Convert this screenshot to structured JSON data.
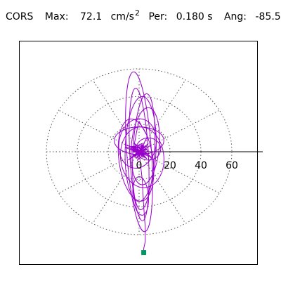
{
  "header": {
    "station": "CORS",
    "max_label": "Max:",
    "max_value": "72.1",
    "max_unit": "cm/s",
    "max_unit_exp": "2",
    "period_label": "Per:",
    "period_value": "0.180 s",
    "angle_label": "Ang:",
    "angle_value": "-85.5"
  },
  "chart_data": {
    "type": "polar-orbit",
    "title": "",
    "radial_ticks": [
      20,
      40,
      60
    ],
    "radial_tick_labels": [
      "0",
      "20",
      "40",
      "60"
    ],
    "radial_range": [
      0,
      80
    ],
    "grid": true,
    "angular_gridlines_deg": [
      0,
      30,
      60,
      90,
      120,
      150,
      180,
      210,
      240,
      270,
      300,
      330
    ],
    "max_amplitude": 72.1,
    "max_angle_deg": -85.5,
    "colors": {
      "trace": "#9900cc",
      "grid": "#555555",
      "axis": "#000000",
      "marker": "#009966"
    },
    "trace": {
      "x": [
        0,
        1,
        -2,
        3,
        -4,
        4,
        -3,
        5,
        -6,
        2,
        -1,
        6,
        -5,
        7,
        -8,
        4,
        -3,
        8,
        -9,
        3,
        -2,
        5,
        -1,
        0,
        2,
        -3,
        6,
        -7,
        8,
        -6,
        5,
        -4,
        3,
        -2,
        1,
        0,
        3,
        -4,
        6,
        -5,
        2,
        -1,
        0,
        2,
        -2,
        4,
        -5,
        3,
        -3,
        1,
        0,
        -1,
        2,
        0,
        0,
        1,
        2,
        3,
        4,
        5,
        5,
        4,
        3,
        2,
        1,
        0,
        -1,
        -2,
        -3,
        -2,
        -1,
        0
      ],
      "y": [
        0,
        2,
        -3,
        4,
        3,
        -4,
        5,
        -5,
        2,
        6,
        -6,
        1,
        4,
        -3,
        5,
        -2,
        6,
        -4,
        3,
        5,
        -5,
        2,
        -1,
        0,
        4,
        -4,
        6,
        -6,
        5,
        -5,
        4,
        -3,
        3,
        -2,
        2,
        -1,
        1,
        0,
        -2,
        3,
        -3,
        2,
        -2,
        1,
        -1,
        0,
        2,
        -2,
        3,
        -1,
        0,
        1,
        -1,
        0,
        0,
        2,
        4,
        6,
        8,
        10,
        12,
        14,
        16,
        18,
        20,
        22,
        18,
        12,
        6,
        2,
        0,
        0
      ]
    },
    "lobes": [
      {
        "cx": 0,
        "cy": 0,
        "rx": 8,
        "ry": 58,
        "rot": -4
      },
      {
        "cx": 0,
        "cy": -2,
        "rx": 6,
        "ry": 48,
        "rot": -3
      },
      {
        "cx": 1,
        "cy": 2,
        "rx": 10,
        "ry": 38,
        "rot": 2
      },
      {
        "cx": 2,
        "cy": -4,
        "rx": 14,
        "ry": 22,
        "rot": -6
      },
      {
        "cx": -1,
        "cy": 6,
        "rx": 12,
        "ry": 18,
        "rot": 10
      },
      {
        "cx": 1,
        "cy": -32,
        "rx": 5,
        "ry": 14,
        "rot": -5
      },
      {
        "cx": 4,
        "cy": 4,
        "rx": 9,
        "ry": 28,
        "rot": 5
      },
      {
        "cx": -2,
        "cy": -6,
        "rx": 11,
        "ry": 30,
        "rot": -8
      },
      {
        "cx": 3,
        "cy": 0,
        "rx": 7,
        "ry": 42,
        "rot": 3
      },
      {
        "cx": 0,
        "cy": 8,
        "rx": 16,
        "ry": 10,
        "rot": 0
      },
      {
        "cx": 6,
        "cy": 2,
        "rx": 8,
        "ry": 8,
        "rot": 0
      }
    ],
    "tail": {
      "x": [
        2,
        3,
        4,
        4,
        3,
        3
      ],
      "y": [
        -20,
        -40,
        -55,
        -65,
        -70,
        -73
      ]
    }
  }
}
